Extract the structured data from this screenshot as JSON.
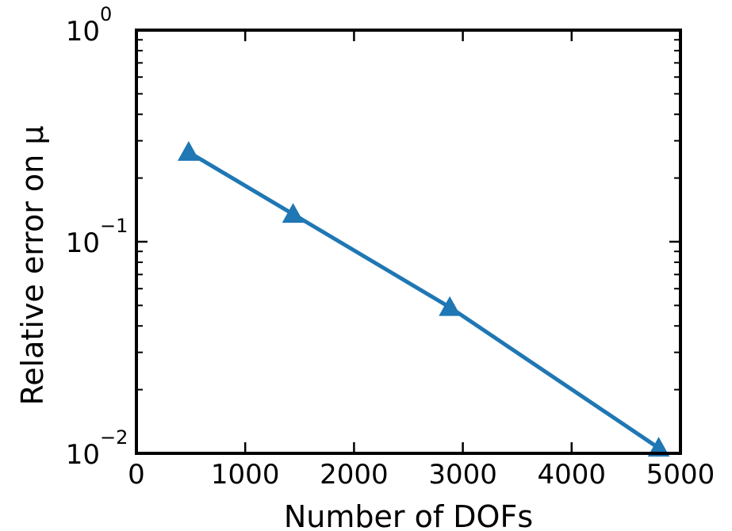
{
  "chart_data": {
    "type": "line",
    "title": "",
    "xlabel": "Number of DOFs",
    "ylabel": "Relative error on μ",
    "xlim": [
      0,
      5000
    ],
    "ylim": [
      0.01,
      1
    ],
    "yscale": "log",
    "grid": false,
    "legend": "none",
    "x_ticks": [
      0,
      1000,
      2000,
      3000,
      4000,
      5000
    ],
    "x_tick_labels": [
      "0",
      "1000",
      "2000",
      "3000",
      "4000",
      "5000"
    ],
    "y_ticks": [
      0.01,
      0.1,
      1
    ],
    "y_tick_labels": [
      {
        "base": "10",
        "exp": "−2"
      },
      {
        "base": "10",
        "exp": "−1"
      },
      {
        "base": "10",
        "exp": "0"
      }
    ],
    "series": [
      {
        "x": [
          480,
          1440,
          2880,
          4800
        ],
        "y": [
          0.265,
          0.135,
          0.049,
          0.0106
        ],
        "color": "#1f77b4",
        "marker": "triangle-up"
      }
    ]
  }
}
